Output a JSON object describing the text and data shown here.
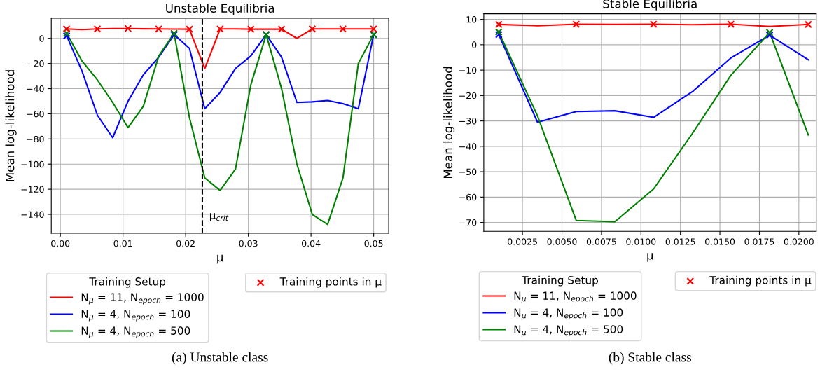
{
  "chart_data": [
    {
      "type": "line",
      "title": "Unstable Equilibria",
      "xlabel": "μ",
      "ylabel": "Mean log-likelihood",
      "legend_title": "Training Setup",
      "legend": "bottom",
      "grid": true,
      "marker": "none",
      "line_style": "solid",
      "x": [
        0.001,
        0.00345,
        0.0059,
        0.00835,
        0.0108,
        0.01325,
        0.0157,
        0.01815,
        0.0206,
        0.02305,
        0.0255,
        0.02795,
        0.0304,
        0.03285,
        0.0353,
        0.03775,
        0.0402,
        0.04265,
        0.0451,
        0.04755,
        0.05
      ],
      "xlim": [
        -0.00145,
        0.0524
      ],
      "xticks": [
        {
          "value": 0,
          "label": "0.00"
        },
        {
          "value": 0.01,
          "label": "0.01"
        },
        {
          "value": 0.02,
          "label": "0.02"
        },
        {
          "value": 0.03,
          "label": "0.03"
        },
        {
          "value": 0.04,
          "label": "0.04"
        },
        {
          "value": 0.05,
          "label": "0.05"
        }
      ],
      "ylim": [
        -155,
        16
      ],
      "yticks": [
        -140,
        -120,
        -100,
        -80,
        -60,
        -40,
        -20,
        0
      ],
      "series": [
        {
          "name": "N$_{μ}$ = 11, N$_{epoch}$ = 1000",
          "color": "#ff0000",
          "values": [
            7.5,
            7,
            7.5,
            7.8,
            7.8,
            7.6,
            7.5,
            7.4,
            7.3,
            -24,
            7.5,
            7.5,
            7.3,
            7.3,
            7.3,
            0,
            7.5,
            7.5,
            7.5,
            7.5,
            7.5
          ]
        },
        {
          "name": "N$_{μ}$ = 4, N$_{epoch}$ = 100",
          "color": "#0000ff",
          "values": [
            2,
            -26,
            -61,
            -79,
            -50,
            -29,
            -15,
            3,
            -8,
            -56,
            -43,
            -24,
            -14,
            3,
            -15,
            -51,
            -50.5,
            -49.5,
            -52,
            -56,
            3
          ]
        },
        {
          "name": "N$_{μ}$ = 4, N$_{epoch}$ = 500",
          "color": "#008000",
          "values": [
            4,
            -18,
            -33,
            -51,
            -71,
            -54,
            -14,
            4,
            -63,
            -111,
            -121,
            -104,
            -37,
            3,
            -40,
            -100,
            -140,
            -148,
            -111,
            -20,
            3
          ]
        },
        {
          "type": "scatter",
          "marker": "cross",
          "color": "#0000ff",
          "x": [
            0.001,
            0.01815,
            0.03285,
            0.05
          ],
          "values": [
            2,
            3,
            3,
            3
          ]
        },
        {
          "type": "scatter",
          "marker": "cross",
          "color": "#008000",
          "x": [
            0.001,
            0.01815,
            0.03285,
            0.05
          ],
          "values": [
            4,
            4,
            3,
            3
          ]
        },
        {
          "type": "scatter",
          "marker": "cross",
          "name": "Training points in μ",
          "color": "#ff0000",
          "x": [
            0.001,
            0.0059,
            0.0108,
            0.0157,
            0.0206,
            0.0255,
            0.0304,
            0.0353,
            0.0402,
            0.0451,
            0.05
          ],
          "values": [
            7.5,
            7.5,
            7.8,
            7.5,
            7.3,
            7.5,
            7.3,
            7.3,
            7.5,
            7.5,
            7.5
          ]
        }
      ],
      "ref_lines": [
        {
          "axis": "x",
          "value": 0.02266,
          "label": "μ$_{crit}$",
          "color": "#000000",
          "line_style": "dashed"
        }
      ],
      "annotations": [
        "(a) Unstable class"
      ]
    },
    {
      "type": "line",
      "title": "Stable Equilibria",
      "xlabel": "μ",
      "ylabel": "Mean log-likelihood",
      "legend_title": "Training Setup",
      "legend": "bottom",
      "grid": true,
      "marker": "none",
      "line_style": "solid",
      "x": [
        0.001,
        0.00345,
        0.0059,
        0.00835,
        0.0108,
        0.01325,
        0.0157,
        0.01815,
        0.0206
      ],
      "xlim": [
        5e-05,
        0.0211
      ],
      "xticks": [
        {
          "value": 0.0025,
          "label": "0.0025"
        },
        {
          "value": 0.005,
          "label": "0.0050"
        },
        {
          "value": 0.0075,
          "label": "0.0075"
        },
        {
          "value": 0.01,
          "label": "0.0100"
        },
        {
          "value": 0.0125,
          "label": "0.0125"
        },
        {
          "value": 0.015,
          "label": "0.0150"
        },
        {
          "value": 0.0175,
          "label": "0.0175"
        },
        {
          "value": 0.02,
          "label": "0.0200"
        }
      ],
      "ylim": [
        -73.5,
        12.2
      ],
      "yticks": [
        -70,
        -60,
        -50,
        -40,
        -30,
        -20,
        -10,
        0,
        10
      ],
      "series": [
        {
          "name": "N$_{μ}$ = 11, N$_{epoch}$ = 1000",
          "color": "#ff0000",
          "values": [
            8,
            7.5,
            8.1,
            8,
            8.1,
            7.9,
            8.1,
            7.2,
            8
          ]
        },
        {
          "name": "N$_{μ}$ = 4, N$_{epoch}$ = 100",
          "color": "#0000ff",
          "values": [
            4,
            -30.5,
            -26.3,
            -26,
            -28.6,
            -18.5,
            -5.2,
            3.8,
            -5.9
          ]
        },
        {
          "name": "N$_{μ}$ = 4, N$_{epoch}$ = 500",
          "color": "#008000",
          "values": [
            5,
            -28,
            -69.2,
            -69.7,
            -56.8,
            -35,
            -12,
            4.8,
            -35.5
          ]
        },
        {
          "type": "scatter",
          "marker": "cross",
          "color": "#0000ff",
          "x": [
            0.001,
            0.01815
          ],
          "values": [
            4,
            3.8
          ]
        },
        {
          "type": "scatter",
          "marker": "cross",
          "color": "#008000",
          "x": [
            0.001,
            0.01815
          ],
          "values": [
            5,
            4.8
          ]
        },
        {
          "type": "scatter",
          "marker": "cross",
          "name": "Training points in μ",
          "color": "#ff0000",
          "x": [
            0.001,
            0.0059,
            0.0108,
            0.0157,
            0.0206
          ],
          "values": [
            8,
            8.1,
            8.1,
            8.1,
            8
          ]
        }
      ],
      "annotations": [
        "(b) Stable class"
      ]
    }
  ]
}
